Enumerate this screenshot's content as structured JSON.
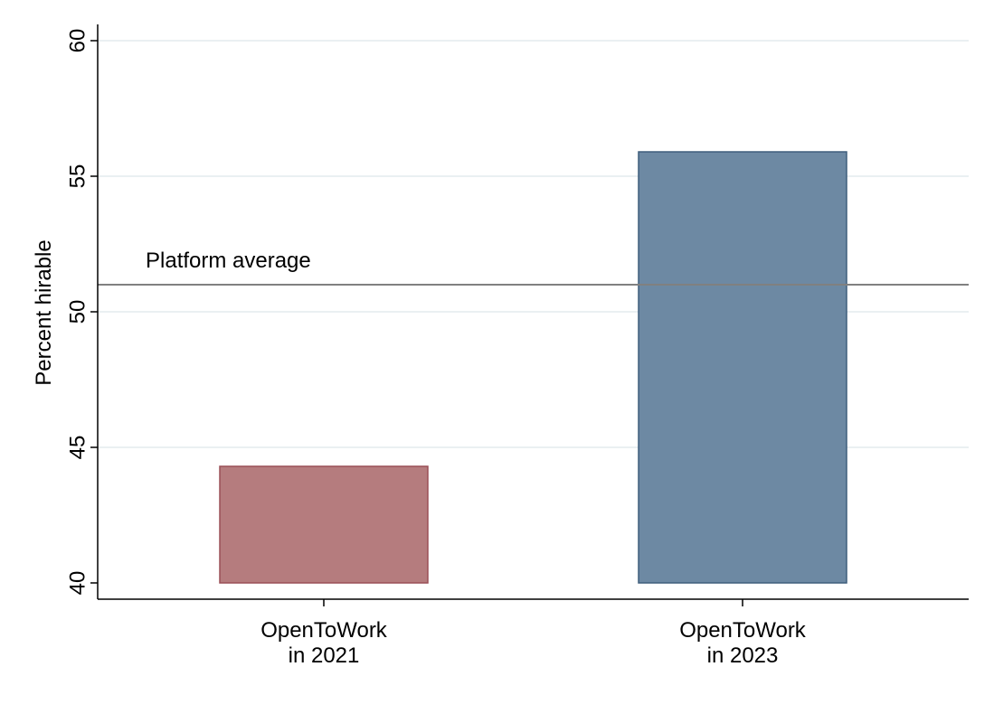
{
  "chart_data": {
    "type": "bar",
    "categories": [
      [
        "OpenToWork",
        "in 2021"
      ],
      [
        "OpenToWork",
        "in 2023"
      ]
    ],
    "values": [
      44.3,
      55.9
    ],
    "bar_colors": [
      "#b57c7e",
      "#6d89a3"
    ],
    "bar_edge_colors": [
      "#9a4e56",
      "#3f5e7c"
    ],
    "title": "",
    "xlabel": "",
    "ylabel": "Percent hirable",
    "ylim": [
      40,
      60
    ],
    "yticks": [
      40,
      45,
      50,
      55,
      60
    ],
    "ytick_labels": [
      "40",
      "45",
      "50",
      "55",
      "60"
    ],
    "grid": true,
    "reference_line": {
      "value": 51,
      "label": "Platform average",
      "color": "#808080"
    }
  }
}
